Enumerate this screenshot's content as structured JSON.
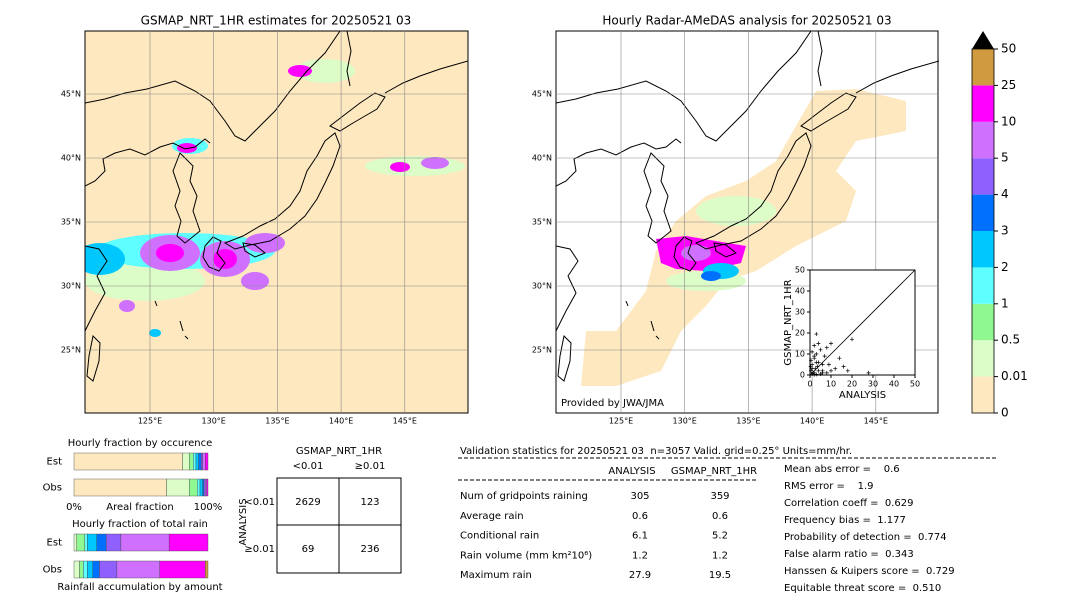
{
  "maps": [
    {
      "title": "GSMAP_NRT_1HR estimates for 20250521 03",
      "lat_labels": [
        "45°N",
        "40°N",
        "35°N",
        "30°N",
        "25°N"
      ],
      "lon_labels": [
        "125°E",
        "130°E",
        "135°E",
        "140°E",
        "145°E"
      ]
    },
    {
      "title": "Hourly Radar-AMeDAS analysis for 20250521 03",
      "lat_labels": [
        "45°N",
        "40°N",
        "35°N",
        "30°N",
        "25°N"
      ],
      "lon_labels": [
        "125°E",
        "130°E",
        "135°E",
        "140°E",
        "145°E"
      ],
      "credit": "Provided by JWA/JMA"
    }
  ],
  "chart_data": [
    {
      "type": "scatter",
      "xlabel": "ANALYSIS",
      "ylabel": "GSMAP_NRT_1HR",
      "color": "#000000",
      "xlim": [
        0,
        50
      ],
      "ylim": [
        0,
        50
      ],
      "xticks": [
        0,
        10,
        20,
        30,
        40,
        50
      ],
      "yticks": [
        0,
        10,
        20,
        30,
        40,
        50
      ],
      "x": [
        0.5,
        1,
        1.5,
        2,
        2.5,
        3,
        3.5,
        4,
        5,
        6,
        7,
        8,
        9,
        10,
        12,
        14,
        16,
        18,
        20,
        27.9,
        1,
        2,
        3,
        4,
        5,
        6,
        0.5,
        1,
        2,
        3,
        8,
        10,
        1,
        2,
        0.3,
        4,
        6,
        3,
        2,
        1
      ],
      "y": [
        2,
        5,
        1,
        8,
        3,
        10,
        4,
        6,
        12,
        2,
        9,
        13,
        5,
        15,
        3,
        8,
        4,
        2,
        17,
        1,
        0.5,
        1,
        0.3,
        2,
        0.5,
        1,
        7,
        11,
        14,
        19.5,
        1,
        2,
        3,
        0.2,
        4,
        15,
        5,
        6,
        9,
        3
      ]
    },
    {
      "type": "colorbar",
      "ticks": [
        0,
        0.01,
        0.5,
        1,
        2,
        3,
        4,
        5,
        10,
        25,
        50
      ],
      "colors": [
        "#fee8c0",
        "#dcfcc8",
        "#90f890",
        "#60ffff",
        "#00c8ff",
        "#0070ff",
        "#9060ff",
        "#d070ff",
        "#ff00ff",
        "#d09a40"
      ],
      "extend_color": "#000000"
    },
    {
      "type": "stacked-bar",
      "title": "Hourly fraction by occurence",
      "categories": [
        "Est",
        "Obs"
      ],
      "xlim": [
        0,
        100
      ],
      "xticks": [
        {
          "value": 0,
          "label": "0%"
        },
        {
          "value": 100,
          "label": "100%"
        }
      ],
      "xlabel": "Areal fraction",
      "series": [
        {
          "color": "#fee8c0",
          "values": [
            81,
            69
          ]
        },
        {
          "color": "#dcfcc8",
          "values": [
            5,
            17
          ]
        },
        {
          "color": "#90f890",
          "values": [
            3,
            6
          ]
        },
        {
          "color": "#60ffff",
          "values": [
            2,
            2
          ]
        },
        {
          "color": "#00c8ff",
          "values": [
            2,
            2
          ]
        },
        {
          "color": "#0070ff",
          "values": [
            2,
            1
          ]
        },
        {
          "color": "#9060ff",
          "values": [
            1,
            1
          ]
        },
        {
          "color": "#d070ff",
          "values": [
            2,
            1
          ]
        },
        {
          "color": "#ff00ff",
          "values": [
            2,
            1
          ]
        },
        {
          "color": "#d09a40",
          "values": [
            0,
            0
          ]
        }
      ]
    },
    {
      "type": "stacked-bar",
      "title": "Hourly fraction of total rain",
      "categories": [
        "Est",
        "Obs"
      ],
      "xlim": [
        0,
        100
      ],
      "xlabel": "Rainfall accumulation by amount",
      "series": [
        {
          "color": "#fee8c0",
          "values": [
            0,
            0
          ]
        },
        {
          "color": "#dcfcc8",
          "values": [
            2,
            4
          ]
        },
        {
          "color": "#90f890",
          "values": [
            6,
            3
          ]
        },
        {
          "color": "#60ffff",
          "values": [
            2,
            3
          ]
        },
        {
          "color": "#00c8ff",
          "values": [
            7,
            4
          ]
        },
        {
          "color": "#0070ff",
          "values": [
            7,
            5
          ]
        },
        {
          "color": "#9060ff",
          "values": [
            11,
            13
          ]
        },
        {
          "color": "#d070ff",
          "values": [
            36,
            32
          ]
        },
        {
          "color": "#ff00ff",
          "values": [
            29,
            34
          ]
        },
        {
          "color": "#d09a40",
          "values": [
            0,
            2
          ]
        }
      ]
    }
  ],
  "contingency": {
    "title": "GSMAP_NRT_1HR",
    "columns": [
      "<0.01",
      "≥0.01"
    ],
    "row_title": "ANALYSIS",
    "rows": [
      "<0.01",
      "≥0.01"
    ],
    "cells": [
      [
        "2629",
        "123"
      ],
      [
        "69",
        "236"
      ]
    ]
  },
  "validation": {
    "title": "Validation statistics for 20250521 03  n=3057 Valid. grid=0.25° Units=mm/hr.",
    "columns": [
      "ANALYSIS",
      "GSMAP_NRT_1HR"
    ],
    "rows": [
      [
        "Num of gridpoints raining",
        "305",
        "359"
      ],
      [
        "Average rain",
        "0.6",
        "0.6"
      ],
      [
        "Conditional rain",
        "6.1",
        "5.2"
      ],
      [
        "Rain volume (mm km²10⁶)",
        "1.2",
        "1.2"
      ],
      [
        "Maximum rain",
        "27.9",
        "19.5"
      ]
    ]
  },
  "scores": [
    "Mean abs error =    0.6",
    "RMS error =    1.9",
    "Correlation coeff =  0.629",
    "Frequency bias =  1.177",
    "Probability of detection =  0.774",
    "False alarm ratio =  0.343",
    "Hanssen & Kuipers score =  0.729",
    "Equitable threat score =  0.510"
  ]
}
